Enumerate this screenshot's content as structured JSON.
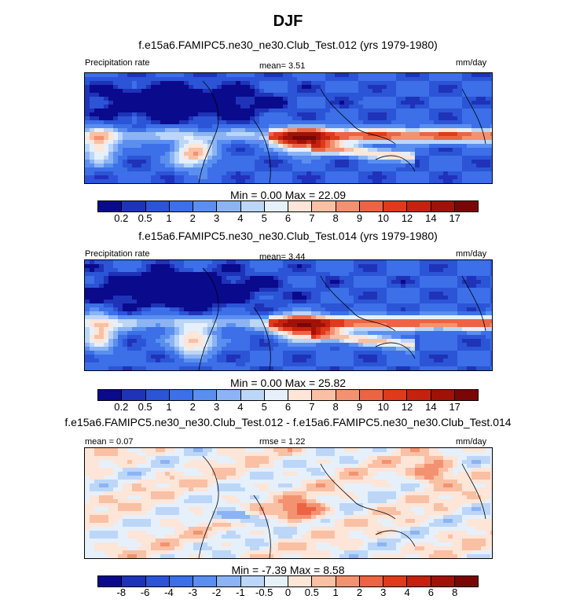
{
  "figure_title": "DJF",
  "panels": [
    {
      "title": "f.e15a6.FAMIPC5.ne30_ne30.Club_Test.012 (yrs 1979-1980)",
      "left_label": "Precipitation rate",
      "center_label": "mean=   3.51",
      "right_label": "mm/day",
      "minmax": "Min =   0.00 Max =  22.09"
    },
    {
      "title": "f.e15a6.FAMIPC5.ne30_ne30.Club_Test.014 (yrs 1979-1980)",
      "left_label": "Precipitation rate",
      "center_label": "mean=   3.44",
      "right_label": "mm/day",
      "minmax": "Min =   0.00 Max =  25.82"
    },
    {
      "title": "f.e15a6.FAMIPC5.ne30_ne30.Club_Test.012 - f.e15a6.FAMIPC5.ne30_ne30.Club_Test.014",
      "left_label": "mean =   0.07",
      "center_label": "rmse =   1.22",
      "right_label": "mm/day",
      "minmax": "Min =  -7.39 Max =   8.58"
    }
  ],
  "colorbars": {
    "precip_colors": [
      "#0a0a8c",
      "#1f33b8",
      "#2b55d6",
      "#3c6fe8",
      "#5a8ff0",
      "#8cb4f4",
      "#bcd6f8",
      "#e6f0fb",
      "#fde5d8",
      "#f9c0a4",
      "#f39270",
      "#ec6444",
      "#df3a1c",
      "#c4220e",
      "#a01208",
      "#7a0606"
    ],
    "precip_ticks": [
      "0.2",
      "0.5",
      "1",
      "2",
      "3",
      "4",
      "5",
      "6",
      "7",
      "8",
      "9",
      "10",
      "12",
      "14",
      "17"
    ],
    "diff_colors": [
      "#0a0a8c",
      "#1f33b8",
      "#2b55d6",
      "#3c6fe8",
      "#5a8ff0",
      "#8cb4f4",
      "#bcd6f8",
      "#e6f0fb",
      "#fde5d8",
      "#f9c0a4",
      "#f39270",
      "#ec6444",
      "#df3a1c",
      "#c4220e",
      "#a01208",
      "#7a0606"
    ],
    "diff_ticks": [
      "-8",
      "-6",
      "-4",
      "-3",
      "-2",
      "-1",
      "-0.5",
      "0",
      "0.5",
      "1",
      "2",
      "3",
      "4",
      "6",
      "8"
    ]
  },
  "chart_data": [
    {
      "type": "heatmap",
      "title": "f.e15a6.FAMIPC5.ne30_ne30.Club_Test.012 (yrs 1979-1980)",
      "variable": "Precipitation rate",
      "units": "mm/day",
      "mean": 3.51,
      "min": 0.0,
      "max": 22.09,
      "levels": [
        0.2,
        0.5,
        1,
        2,
        3,
        4,
        5,
        6,
        7,
        8,
        9,
        10,
        12,
        14,
        17
      ]
    },
    {
      "type": "heatmap",
      "title": "f.e15a6.FAMIPC5.ne30_ne30.Club_Test.014 (yrs 1979-1980)",
      "variable": "Precipitation rate",
      "units": "mm/day",
      "mean": 3.44,
      "min": 0.0,
      "max": 25.82,
      "levels": [
        0.2,
        0.5,
        1,
        2,
        3,
        4,
        5,
        6,
        7,
        8,
        9,
        10,
        12,
        14,
        17
      ]
    },
    {
      "type": "heatmap",
      "title": "f.e15a6.FAMIPC5.ne30_ne30.Club_Test.012 - f.e15a6.FAMIPC5.ne30_ne30.Club_Test.014",
      "units": "mm/day",
      "mean": 0.07,
      "rmse": 1.22,
      "min": -7.39,
      "max": 8.58,
      "levels": [
        -8,
        -6,
        -4,
        -3,
        -2,
        -1,
        -0.5,
        0,
        0.5,
        1,
        2,
        3,
        4,
        6,
        8
      ]
    }
  ]
}
